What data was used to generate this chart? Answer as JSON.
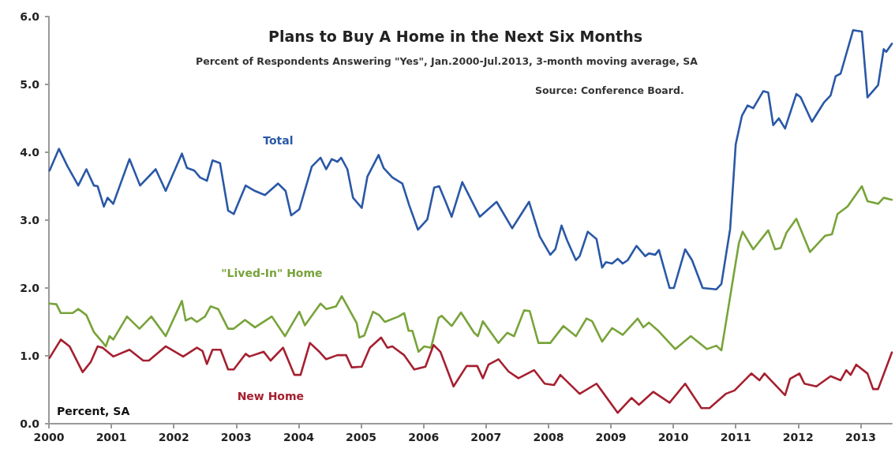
{
  "chart_data": {
    "type": "line",
    "title": "Plans to Buy A Home in the Next Six Months",
    "subtitle": "Percent of Respondents Answering \"Yes\", Jan.2000-Jul.2013, 3-month moving average, SA",
    "ylabel": "Percent, SA",
    "annotations": [
      "Source: Conference Board."
    ],
    "xlim": [
      2000,
      2013.5
    ],
    "xticks": [
      2000,
      2001,
      2002,
      2003,
      2004,
      2005,
      2006,
      2007,
      2008,
      2009,
      2010,
      2011,
      2012,
      2013
    ],
    "ylim": [
      0,
      6
    ],
    "yticks": [
      {
        "value": 0,
        "label": "0.0"
      },
      {
        "value": 1,
        "label": "1.0"
      },
      {
        "value": 2,
        "label": "2.0"
      },
      {
        "value": 3,
        "label": "3.0"
      },
      {
        "value": 4,
        "label": "4.0"
      },
      {
        "value": 5,
        "label": "5.0"
      },
      {
        "value": 6,
        "label": "6.0"
      }
    ],
    "grid": false,
    "legend": false,
    "marker": "none",
    "line_style": "solid",
    "series": [
      {
        "name": "Total",
        "color": "#2a58a6",
        "x": [
          2000.01,
          2000.16,
          2000.3,
          2000.47,
          2000.6,
          2000.72,
          2000.78,
          2000.88,
          2000.94,
          2001.03,
          2001.29,
          2001.46,
          2001.71,
          2001.87,
          2002.13,
          2002.21,
          2002.33,
          2002.42,
          2002.53,
          2002.62,
          2002.74,
          2002.87,
          2002.96,
          2003.15,
          2003.3,
          2003.46,
          2003.67,
          2003.79,
          2003.88,
          2004.01,
          2004.21,
          2004.35,
          2004.44,
          2004.53,
          2004.62,
          2004.68,
          2004.78,
          2004.87,
          2005.01,
          2005.1,
          2005.28,
          2005.36,
          2005.5,
          2005.66,
          2005.77,
          2005.91,
          2006.06,
          2006.17,
          2006.25,
          2006.35,
          2006.45,
          2006.62,
          2006.9,
          2007.17,
          2007.42,
          2007.69,
          2007.86,
          2008.03,
          2008.11,
          2008.21,
          2008.3,
          2008.44,
          2008.5,
          2008.63,
          2008.77,
          2008.86,
          2008.92,
          2009.02,
          2009.11,
          2009.19,
          2009.27,
          2009.41,
          2009.55,
          2009.61,
          2009.71,
          2009.77,
          2009.94,
          2010.01,
          2010.19,
          2010.3,
          2010.47,
          2010.69,
          2010.77,
          2010.91,
          2011.0,
          2011.1,
          2011.19,
          2011.28,
          2011.44,
          2011.52,
          2011.6,
          2011.69,
          2011.79,
          2011.97,
          2012.04,
          2012.22,
          2012.41,
          2012.52,
          2012.6,
          2012.68,
          2012.88,
          2013.02,
          2013.11,
          2013.28,
          2013.37,
          2013.41,
          2013.5
        ],
        "values": [
          3.73,
          4.05,
          3.79,
          3.51,
          3.75,
          3.51,
          3.5,
          3.2,
          3.33,
          3.24,
          3.9,
          3.51,
          3.75,
          3.43,
          3.98,
          3.77,
          3.73,
          3.63,
          3.58,
          3.88,
          3.84,
          3.14,
          3.09,
          3.51,
          3.43,
          3.37,
          3.54,
          3.43,
          3.07,
          3.16,
          3.79,
          3.92,
          3.75,
          3.9,
          3.86,
          3.92,
          3.75,
          3.33,
          3.18,
          3.64,
          3.96,
          3.77,
          3.63,
          3.54,
          3.22,
          2.86,
          3.01,
          3.48,
          3.5,
          3.28,
          3.05,
          3.56,
          3.05,
          3.27,
          2.88,
          3.27,
          2.76,
          2.49,
          2.57,
          2.92,
          2.7,
          2.41,
          2.47,
          2.83,
          2.72,
          2.3,
          2.38,
          2.36,
          2.43,
          2.36,
          2.41,
          2.62,
          2.47,
          2.51,
          2.49,
          2.56,
          2.0,
          2.0,
          2.57,
          2.41,
          2.0,
          1.98,
          2.06,
          2.87,
          4.12,
          4.54,
          4.69,
          4.65,
          4.9,
          4.88,
          4.4,
          4.5,
          4.35,
          4.86,
          4.81,
          4.45,
          4.73,
          4.84,
          5.12,
          5.16,
          5.8,
          5.78,
          4.81,
          4.99,
          5.52,
          5.48,
          5.6
        ]
      },
      {
        "name": "\"Lived-In\" Home",
        "color": "#78a33a",
        "x": [
          2000.01,
          2000.12,
          2000.19,
          2000.38,
          2000.47,
          2000.6,
          2000.72,
          2000.86,
          2000.91,
          2000.97,
          2001.03,
          2001.25,
          2001.45,
          2001.64,
          2001.87,
          2002.13,
          2002.19,
          2002.28,
          2002.37,
          2002.5,
          2002.59,
          2002.71,
          2002.87,
          2002.96,
          2003.14,
          2003.3,
          2003.57,
          2003.78,
          2004.01,
          2004.1,
          2004.35,
          2004.44,
          2004.6,
          2004.69,
          2004.93,
          2004.97,
          2005.05,
          2005.19,
          2005.29,
          2005.38,
          2005.6,
          2005.69,
          2005.76,
          2005.82,
          2005.92,
          2006.01,
          2006.12,
          2006.24,
          2006.29,
          2006.45,
          2006.6,
          2006.81,
          2006.87,
          2006.95,
          2007.2,
          2007.34,
          2007.45,
          2007.61,
          2007.7,
          2007.84,
          2008.03,
          2008.24,
          2008.44,
          2008.61,
          2008.7,
          2008.86,
          2009.02,
          2009.19,
          2009.43,
          2009.52,
          2009.61,
          2009.77,
          2010.03,
          2010.28,
          2010.54,
          2010.69,
          2010.77,
          2011.05,
          2011.11,
          2011.28,
          2011.52,
          2011.63,
          2011.72,
          2011.81,
          2011.97,
          2012.19,
          2012.43,
          2012.54,
          2012.63,
          2012.79,
          2013.02,
          2013.11,
          2013.28,
          2013.37,
          2013.5
        ],
        "values": [
          1.77,
          1.76,
          1.63,
          1.63,
          1.69,
          1.6,
          1.35,
          1.2,
          1.14,
          1.29,
          1.24,
          1.58,
          1.4,
          1.58,
          1.29,
          1.81,
          1.52,
          1.56,
          1.5,
          1.58,
          1.73,
          1.69,
          1.4,
          1.4,
          1.53,
          1.42,
          1.58,
          1.29,
          1.65,
          1.45,
          1.77,
          1.69,
          1.73,
          1.88,
          1.48,
          1.27,
          1.3,
          1.65,
          1.6,
          1.5,
          1.58,
          1.63,
          1.37,
          1.37,
          1.06,
          1.14,
          1.12,
          1.56,
          1.59,
          1.44,
          1.64,
          1.34,
          1.29,
          1.51,
          1.19,
          1.34,
          1.29,
          1.67,
          1.66,
          1.19,
          1.19,
          1.44,
          1.29,
          1.55,
          1.51,
          1.21,
          1.41,
          1.31,
          1.55,
          1.42,
          1.49,
          1.36,
          1.1,
          1.29,
          1.1,
          1.15,
          1.08,
          2.66,
          2.83,
          2.57,
          2.85,
          2.57,
          2.59,
          2.81,
          3.02,
          2.53,
          2.77,
          2.79,
          3.09,
          3.2,
          3.5,
          3.28,
          3.24,
          3.33,
          3.3
        ]
      },
      {
        "name": "New Home",
        "color": "#a52030",
        "x": [
          2000.01,
          2000.19,
          2000.33,
          2000.54,
          2000.67,
          2000.78,
          2000.86,
          2001.03,
          2001.29,
          2001.51,
          2001.6,
          2001.87,
          2002.15,
          2002.37,
          2002.46,
          2002.53,
          2002.62,
          2002.75,
          2002.87,
          2002.96,
          2003.15,
          2003.21,
          2003.44,
          2003.55,
          2003.75,
          2003.93,
          2004.03,
          2004.18,
          2004.32,
          2004.44,
          2004.62,
          2004.76,
          2004.85,
          2005.01,
          2005.14,
          2005.32,
          2005.42,
          2005.5,
          2005.69,
          2005.85,
          2006.03,
          2006.16,
          2006.27,
          2006.48,
          2006.69,
          2006.86,
          2006.95,
          2007.04,
          2007.2,
          2007.36,
          2007.52,
          2007.77,
          2007.94,
          2008.09,
          2008.19,
          2008.5,
          2008.77,
          2009.11,
          2009.33,
          2009.45,
          2009.68,
          2009.94,
          2010.19,
          2010.45,
          2010.58,
          2010.84,
          2010.98,
          2011.25,
          2011.38,
          2011.46,
          2011.79,
          2011.87,
          2012.02,
          2012.1,
          2012.29,
          2012.52,
          2012.68,
          2012.77,
          2012.84,
          2012.93,
          2013.11,
          2013.2,
          2013.28,
          2013.5
        ],
        "values": [
          0.97,
          1.24,
          1.14,
          0.76,
          0.91,
          1.14,
          1.12,
          0.99,
          1.09,
          0.93,
          0.93,
          1.14,
          0.99,
          1.12,
          1.07,
          0.88,
          1.09,
          1.09,
          0.8,
          0.8,
          1.03,
          0.99,
          1.06,
          0.93,
          1.12,
          0.72,
          0.72,
          1.19,
          1.07,
          0.95,
          1.01,
          1.01,
          0.83,
          0.84,
          1.12,
          1.27,
          1.12,
          1.14,
          1.01,
          0.8,
          0.84,
          1.16,
          1.06,
          0.55,
          0.85,
          0.85,
          0.67,
          0.87,
          0.95,
          0.77,
          0.67,
          0.79,
          0.59,
          0.57,
          0.72,
          0.44,
          0.59,
          0.16,
          0.38,
          0.28,
          0.47,
          0.31,
          0.59,
          0.23,
          0.23,
          0.44,
          0.49,
          0.74,
          0.64,
          0.74,
          0.42,
          0.66,
          0.74,
          0.59,
          0.55,
          0.7,
          0.64,
          0.79,
          0.72,
          0.87,
          0.74,
          0.51,
          0.51,
          1.05
        ]
      }
    ]
  }
}
